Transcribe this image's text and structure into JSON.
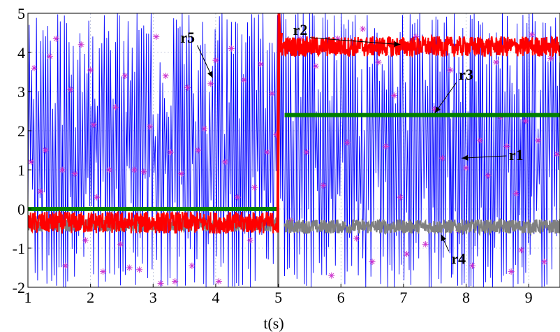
{
  "chart_data": {
    "type": "line",
    "xlabel": "t(s)",
    "ylabel": "",
    "xlim": [
      1,
      9.5
    ],
    "ylim": [
      -2,
      5
    ],
    "x_ticks": [
      "1",
      "2",
      "3",
      "4",
      "5",
      "6",
      "7",
      "8",
      "9"
    ],
    "y_ticks": [
      "-2",
      "-1",
      "0",
      "1",
      "2",
      "3",
      "4",
      "5"
    ],
    "grid": true,
    "colors": {
      "r1": "#0000ff",
      "r2": "#ff0000",
      "r3": "#008000",
      "r4": "#808080",
      "r5": "#cc33cc"
    },
    "series": [
      {
        "name": "r1",
        "style": "dense oscillation",
        "segments": [
          {
            "x": [
              1,
              9.5
            ],
            "y_min": -2,
            "y_max": 5
          }
        ]
      },
      {
        "name": "r2",
        "style": "noisy band",
        "segments": [
          {
            "x": [
              1,
              5
            ],
            "y": -0.35
          },
          {
            "x": [
              5.05,
              9.5
            ],
            "y": 4.15
          }
        ]
      },
      {
        "name": "r3",
        "style": "thick line",
        "segments": [
          {
            "x": [
              1,
              5
            ],
            "y": 0
          },
          {
            "x": [
              5.1,
              9.5
            ],
            "y": 2.4
          }
        ]
      },
      {
        "name": "r4",
        "style": "noisy band",
        "segments": [
          {
            "x": [
              1,
              5
            ],
            "y": -0.4
          },
          {
            "x": [
              5.1,
              9.5
            ],
            "y": -0.45
          }
        ]
      },
      {
        "name": "r5",
        "style": "scattered markers",
        "marker": "*",
        "points": [
          [
            1.05,
            1.2
          ],
          [
            1.1,
            3.6
          ],
          [
            1.2,
            0.45
          ],
          [
            1.28,
            1.5
          ],
          [
            1.35,
            3.9
          ],
          [
            1.45,
            4.35
          ],
          [
            1.55,
            1.0
          ],
          [
            1.6,
            -1.45
          ],
          [
            1.68,
            3.05
          ],
          [
            1.75,
            0.9
          ],
          [
            1.85,
            4.2
          ],
          [
            1.92,
            -0.8
          ],
          [
            2.0,
            3.55
          ],
          [
            2.05,
            2.15
          ],
          [
            2.1,
            0.3
          ],
          [
            2.2,
            -1.6
          ],
          [
            2.3,
            1.0
          ],
          [
            2.4,
            2.6
          ],
          [
            2.48,
            -0.9
          ],
          [
            2.55,
            3.4
          ],
          [
            2.62,
            -1.5
          ],
          [
            2.7,
            1.0
          ],
          [
            2.78,
            -1.55
          ],
          [
            2.85,
            0.95
          ],
          [
            2.95,
            2.1
          ],
          [
            3.05,
            4.4
          ],
          [
            3.12,
            -1.9
          ],
          [
            3.2,
            3.4
          ],
          [
            3.28,
            1.45
          ],
          [
            3.35,
            -1.85
          ],
          [
            3.45,
            0.9
          ],
          [
            3.55,
            3.1
          ],
          [
            3.62,
            -1.45
          ],
          [
            3.72,
            1.5
          ],
          [
            3.82,
            2.05
          ],
          [
            3.92,
            3.2
          ],
          [
            4.0,
            3.8
          ],
          [
            4.05,
            -1.85
          ],
          [
            4.15,
            1.2
          ],
          [
            4.25,
            4.1
          ],
          [
            4.35,
            0.3
          ],
          [
            4.45,
            3.3
          ],
          [
            4.55,
            -0.8
          ],
          [
            4.62,
            0.55
          ],
          [
            4.72,
            3.7
          ],
          [
            4.82,
            1.45
          ],
          [
            4.9,
            2.95
          ],
          [
            4.97,
            1.9
          ],
          [
            5.2,
            -0.3
          ],
          [
            5.35,
            4.35
          ],
          [
            5.45,
            1.45
          ],
          [
            5.6,
            3.65
          ],
          [
            5.72,
            0.6
          ],
          [
            5.85,
            -1.7
          ],
          [
            5.95,
            4.35
          ],
          [
            6.1,
            1.7
          ],
          [
            6.25,
            -0.75
          ],
          [
            6.35,
            4.6
          ],
          [
            6.5,
            -1.35
          ],
          [
            6.6,
            3.75
          ],
          [
            6.72,
            1.6
          ],
          [
            6.85,
            2.9
          ],
          [
            6.95,
            0.3
          ],
          [
            7.05,
            -1.15
          ],
          [
            7.2,
            4.4
          ],
          [
            7.35,
            -0.9
          ],
          [
            7.5,
            2.55
          ],
          [
            7.62,
            1.3
          ],
          [
            7.75,
            3.55
          ],
          [
            7.88,
            -0.55
          ],
          [
            8.0,
            1.05
          ],
          [
            8.1,
            -1.45
          ],
          [
            8.22,
            1.75
          ],
          [
            8.35,
            0.85
          ],
          [
            8.48,
            3.75
          ],
          [
            8.55,
            2.35
          ],
          [
            8.65,
            1.6
          ],
          [
            8.72,
            -1.6
          ],
          [
            8.8,
            0.4
          ],
          [
            8.88,
            -1.05
          ],
          [
            8.95,
            2.25
          ],
          [
            9.05,
            4.45
          ],
          [
            9.15,
            1.75
          ],
          [
            9.25,
            -1.35
          ],
          [
            9.35,
            3.85
          ],
          [
            9.45,
            1.4
          ]
        ]
      }
    ],
    "annotations": [
      {
        "text": "r5",
        "x": 3.55,
        "y": 4.25,
        "arrow_to": [
          3.95,
          3.35
        ]
      },
      {
        "text": "r2",
        "x": 5.35,
        "y": 4.45,
        "arrow_to": [
          6.95,
          4.2
        ]
      },
      {
        "text": "r3",
        "x": 8.0,
        "y": 3.3,
        "arrow_to": [
          7.5,
          2.45
        ]
      },
      {
        "text": "r1",
        "x": 8.8,
        "y": 1.25,
        "arrow_to": [
          7.93,
          1.3
        ]
      },
      {
        "text": "r4",
        "x": 7.88,
        "y": -1.4,
        "arrow_to": [
          7.6,
          -0.65
        ]
      }
    ]
  }
}
